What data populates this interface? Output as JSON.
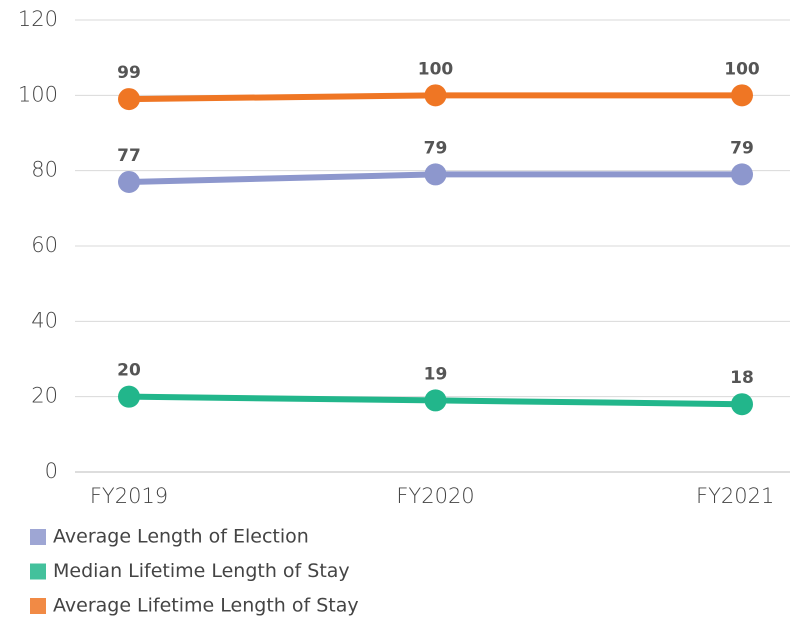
{
  "chart_data": {
    "type": "line",
    "categories": [
      "FY2019",
      "FY2020",
      "FY2021"
    ],
    "series": [
      {
        "name": "Average Length of Election",
        "color": "#8d97cd",
        "values": [
          77,
          79,
          79
        ]
      },
      {
        "name": "Median Lifetime Length of Stay",
        "color": "#22b68b",
        "values": [
          20,
          19,
          18
        ]
      },
      {
        "name": "Average Lifetime Length of Stay",
        "color": "#ef7624",
        "values": [
          99,
          100,
          100
        ]
      }
    ],
    "ylim": [
      0,
      120
    ],
    "yticks": [
      0,
      20,
      40,
      60,
      80,
      100,
      120
    ],
    "grid": true,
    "legend": "bottom"
  }
}
